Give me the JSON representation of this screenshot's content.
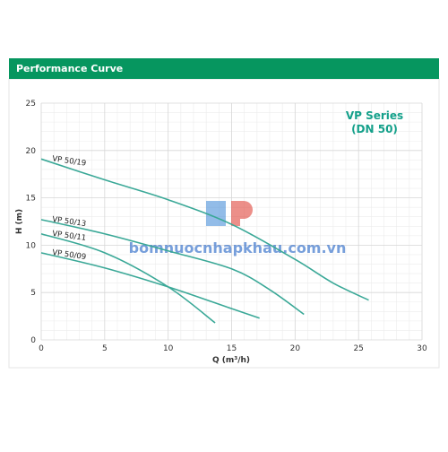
{
  "header": {
    "title": "Performance Curve"
  },
  "chart_data": {
    "type": "line",
    "xlabel": "Q (m³/h)",
    "ylabel": "H (m)",
    "annotations": [
      "VP Series",
      "(DN 50)"
    ],
    "watermark": "bomnuocnhapkhau.com.vn",
    "xlim": [
      0,
      30
    ],
    "xticks": [
      0,
      5,
      10,
      15,
      20,
      25,
      30
    ],
    "ylim": [
      0,
      25
    ],
    "yticks": [
      0,
      5,
      10,
      15,
      20,
      25
    ],
    "grid": true,
    "minor_grid": true,
    "series": [
      {
        "name": "VP 50/19",
        "color": "#3aa897",
        "x": [
          0,
          5,
          10,
          15,
          20,
          23,
          25.8
        ],
        "values": [
          19.1,
          16.9,
          14.8,
          12.2,
          8.5,
          6,
          4.2
        ]
      },
      {
        "name": "VP 50/13",
        "color": "#3aa897",
        "x": [
          0,
          5,
          10,
          15,
          18,
          20.7
        ],
        "values": [
          12.7,
          11.2,
          9.4,
          7.5,
          5.3,
          2.7
        ]
      },
      {
        "name": "VP 50/11",
        "color": "#3aa897",
        "x": [
          0,
          5,
          10,
          13.7
        ],
        "values": [
          11.2,
          9.2,
          5.6,
          1.8
        ]
      },
      {
        "name": "VP 50/09",
        "color": "#3aa897",
        "x": [
          0,
          5,
          10,
          15,
          17.2
        ],
        "values": [
          9.2,
          7.6,
          5.6,
          3.3,
          2.3
        ]
      }
    ]
  }
}
